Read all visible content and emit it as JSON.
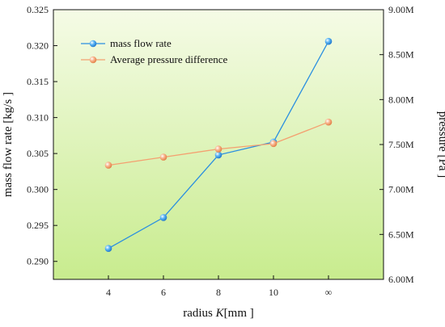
{
  "chart_data": {
    "type": "line",
    "x_categories": [
      "4",
      "6",
      "8",
      "10",
      "∞"
    ],
    "xlabel_prefix": "radius ",
    "xlabel_italic": "K",
    "xlabel_suffix": "[mm ]",
    "ylabel_left": "mass flow rate [kg/s ]",
    "ylabel_right": "pressure [Pa ]",
    "ylim_left": [
      0.2875,
      0.325
    ],
    "yticks_left": [
      "0.290",
      "0.295",
      "0.300",
      "0.305",
      "0.310",
      "0.315",
      "0.320",
      "0.325"
    ],
    "yticks_left_values": [
      0.29,
      0.295,
      0.3,
      0.305,
      0.31,
      0.315,
      0.32,
      0.325
    ],
    "ylim_right": [
      6.0,
      9.0
    ],
    "yticks_right": [
      "6.00M",
      "6.50M",
      "7.00M",
      "7.50M",
      "8.00M",
      "8.50M",
      "9.00M"
    ],
    "yticks_right_values": [
      6.0,
      6.5,
      7.0,
      7.5,
      8.0,
      8.5,
      9.0
    ],
    "legend_position": "top-left",
    "series": [
      {
        "name": "mass flow rate",
        "axis": "left",
        "color": "#2a8fe0",
        "values": [
          0.2918,
          0.2961,
          0.3048,
          0.3066,
          0.3206
        ]
      },
      {
        "name": "Average pressure difference",
        "axis": "right",
        "color": "#f4a070",
        "values": [
          7.27,
          7.36,
          7.45,
          7.51,
          7.75
        ]
      }
    ],
    "background_gradient": [
      "#f5fbe6",
      "#c8ec8e"
    ]
  }
}
